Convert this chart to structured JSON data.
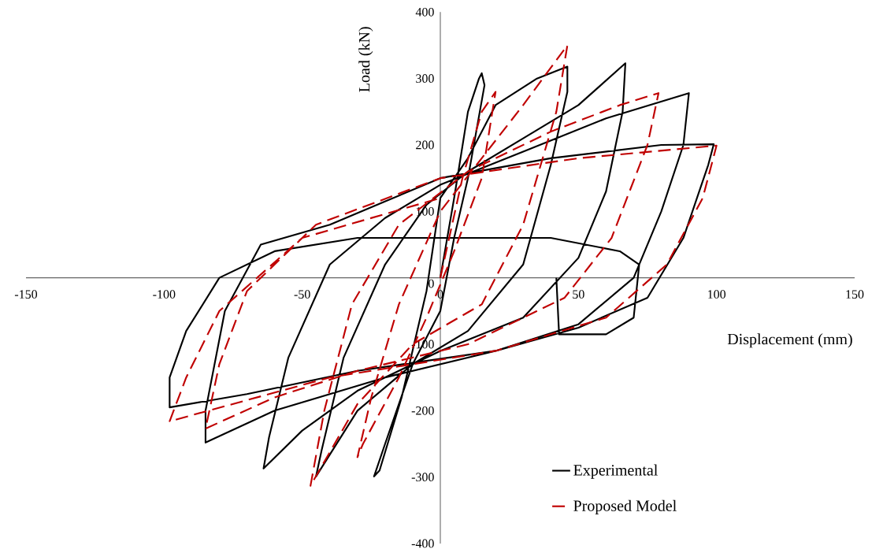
{
  "chart_data": {
    "type": "line",
    "xlabel": "Displacement (mm)",
    "ylabel": "Load (kN)",
    "xlim": [
      -150,
      150
    ],
    "ylim": [
      -400,
      400
    ],
    "xticks": [
      -150,
      -100,
      -50,
      0,
      50,
      100,
      150
    ],
    "yticks": [
      -400,
      -300,
      -200,
      -100,
      0,
      100,
      200,
      300,
      400
    ],
    "grid": false,
    "legend": "bottom right",
    "marker": "none",
    "series": [
      {
        "name": "Experimental",
        "color": "#000000",
        "line_style": "solid",
        "x": [
          0,
          5,
          10,
          14,
          15,
          16,
          10,
          5,
          0,
          -10,
          -20,
          -24,
          -22,
          -14,
          -5,
          0,
          10,
          20,
          35,
          46,
          46,
          40,
          30,
          10,
          -10,
          -30,
          -45,
          -43,
          -35,
          -20,
          -5,
          10,
          30,
          50,
          67,
          66,
          60,
          50,
          30,
          0,
          -30,
          -50,
          -64,
          -62,
          -55,
          -40,
          -20,
          0,
          30,
          60,
          90,
          88,
          80,
          70,
          50,
          20,
          -20,
          -60,
          -85,
          -85,
          -78,
          -65,
          -40,
          0,
          40,
          80,
          99,
          97,
          88,
          75,
          50,
          20,
          -30,
          -70,
          -98,
          -98,
          -92,
          -80,
          -60,
          -30,
          5,
          40,
          65,
          72,
          70,
          60,
          43,
          42
        ],
        "values": [
          0,
          120,
          250,
          300,
          308,
          290,
          150,
          60,
          -50,
          -130,
          -250,
          -299,
          -290,
          -180,
          -20,
          120,
          180,
          260,
          300,
          318,
          280,
          170,
          20,
          -80,
          -130,
          -200,
          -299,
          -260,
          -120,
          20,
          110,
          160,
          210,
          260,
          323,
          250,
          130,
          30,
          -60,
          -110,
          -170,
          -230,
          -287,
          -240,
          -120,
          20,
          90,
          140,
          190,
          240,
          278,
          200,
          100,
          0,
          -70,
          -110,
          -150,
          -200,
          -248,
          -200,
          -50,
          50,
          80,
          150,
          180,
          200,
          201,
          170,
          60,
          -30,
          -75,
          -110,
          -140,
          -175,
          -195,
          -150,
          -80,
          0,
          40,
          60,
          60,
          60,
          40,
          20,
          -60,
          -85,
          -85,
          0
        ]
      },
      {
        "name": "Proposed Model",
        "color": "#c00000",
        "line_style": "dashed",
        "x": [
          0,
          8,
          15,
          20,
          15,
          5,
          -5,
          -15,
          -28,
          -30,
          -25,
          -15,
          0,
          15,
          30,
          46,
          42,
          30,
          15,
          -10,
          -30,
          -47,
          -42,
          -32,
          -15,
          10,
          40,
          65,
          79,
          75,
          62,
          45,
          10,
          -30,
          -60,
          -85,
          -80,
          -70,
          -45,
          0,
          50,
          100,
          95,
          82,
          60,
          20,
          -40,
          -98,
          -92,
          -80,
          -50,
          0
        ],
        "values": [
          0,
          150,
          250,
          280,
          150,
          40,
          -60,
          -150,
          -250,
          -270,
          -180,
          -40,
          100,
          180,
          260,
          350,
          250,
          80,
          -40,
          -100,
          -190,
          -313,
          -200,
          -40,
          80,
          160,
          220,
          260,
          278,
          200,
          60,
          -30,
          -100,
          -140,
          -180,
          -227,
          -130,
          -20,
          80,
          150,
          180,
          199,
          120,
          20,
          -60,
          -110,
          -150,
          -216,
          -150,
          -50,
          60,
          120
        ]
      }
    ]
  }
}
